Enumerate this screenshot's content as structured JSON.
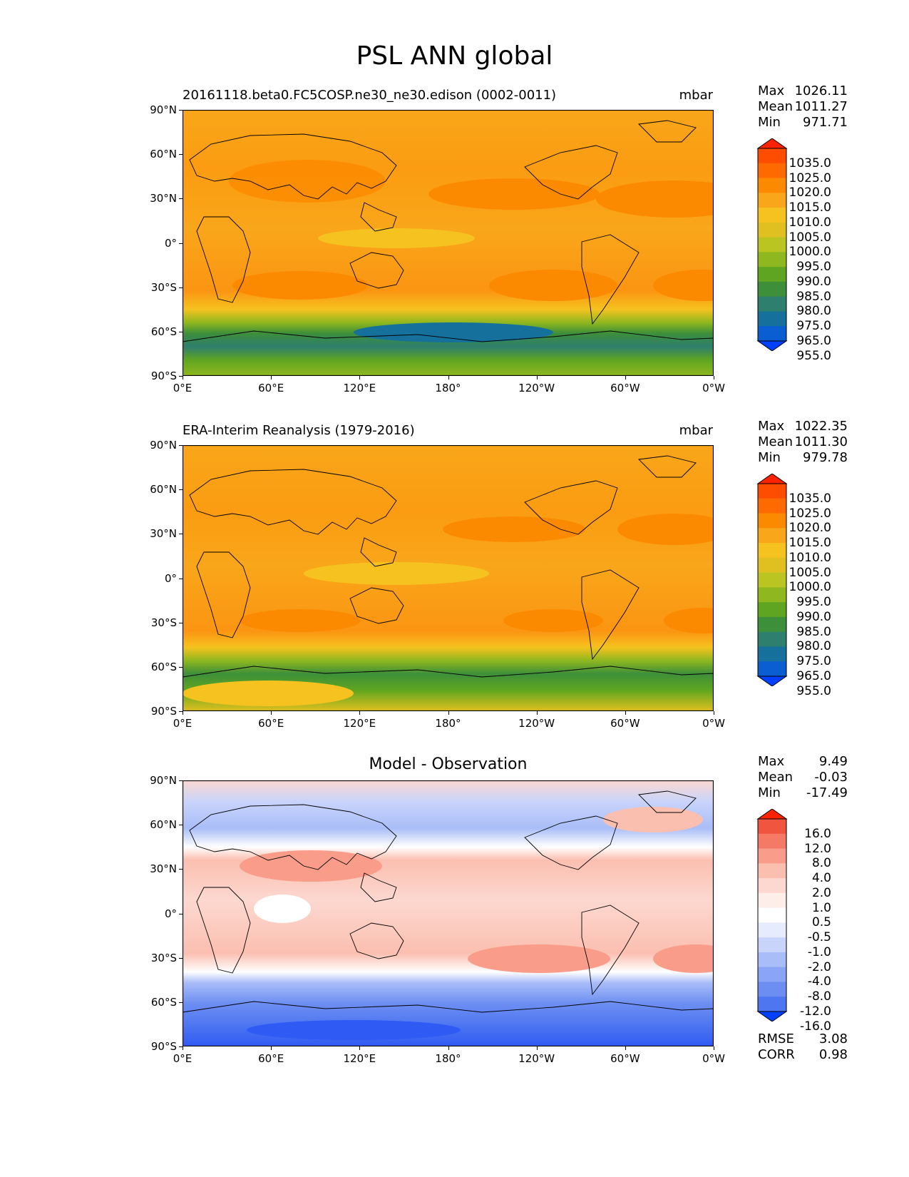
{
  "title": "PSL ANN global",
  "x_ticks": [
    "0°E",
    "60°E",
    "120°E",
    "180°",
    "120°W",
    "60°W",
    "0°W"
  ],
  "y_ticks": [
    "90°N",
    "60°N",
    "30°N",
    "0°",
    "30°S",
    "60°S",
    "90°S"
  ],
  "stat_labels": {
    "max": "Max",
    "mean": "Mean",
    "min": "Min",
    "rmse": "RMSE",
    "corr": "CORR"
  },
  "panels": [
    {
      "title_left": "20161118.beta0.FC5COSP.ne30_ne30.edison (0002-0011)",
      "title_right": "mbar",
      "stats": {
        "max": "1026.11",
        "mean": "1011.27",
        "min": "971.71"
      },
      "colorbar_labels": [
        "1035.0",
        "1025.0",
        "1020.0",
        "1015.0",
        "1010.0",
        "1005.0",
        "1000.0",
        "995.0",
        "990.0",
        "985.0",
        "980.0",
        "975.0",
        "965.0",
        "955.0"
      ]
    },
    {
      "title_left": "ERA-Interim Reanalysis (1979-2016)",
      "title_right": "mbar",
      "stats": {
        "max": "1022.35",
        "mean": "1011.30",
        "min": "979.78"
      },
      "colorbar_labels": [
        "1035.0",
        "1025.0",
        "1020.0",
        "1015.0",
        "1010.0",
        "1005.0",
        "1000.0",
        "995.0",
        "990.0",
        "985.0",
        "980.0",
        "975.0",
        "965.0",
        "955.0"
      ]
    },
    {
      "title_center": "Model - Observation",
      "stats": {
        "max": "9.49",
        "mean": "-0.03",
        "min": "-17.49"
      },
      "colorbar_labels": [
        "16.0",
        "12.0",
        "8.0",
        "4.0",
        "2.0",
        "1.0",
        "0.5",
        "-0.5",
        "-1.0",
        "-2.0",
        "-4.0",
        "-8.0",
        "-12.0",
        "-16.0"
      ],
      "metrics": {
        "rmse": "3.08",
        "corr": "0.98"
      }
    }
  ],
  "colors": {
    "psl_scale": [
      "#ff2200",
      "#ff4d00",
      "#ff6a00",
      "#fc8a00",
      "#f9a61a",
      "#f5c21f",
      "#e0c020",
      "#bbc522",
      "#8fb71f",
      "#5fa521",
      "#3d8f3a",
      "#2e7f6e",
      "#15709b",
      "#0a5ed1",
      "#0041ff"
    ],
    "diff_scale": [
      "#ff2200",
      "#f0553f",
      "#f57a66",
      "#f99d8a",
      "#fbbfb0",
      "#fcd8d0",
      "#fdeee9",
      "#ffffff",
      "#e6ebfd",
      "#c9d4fb",
      "#a9bdf8",
      "#8aa5f5",
      "#6c8ef2",
      "#4e76f1",
      "#0041ff"
    ]
  }
}
